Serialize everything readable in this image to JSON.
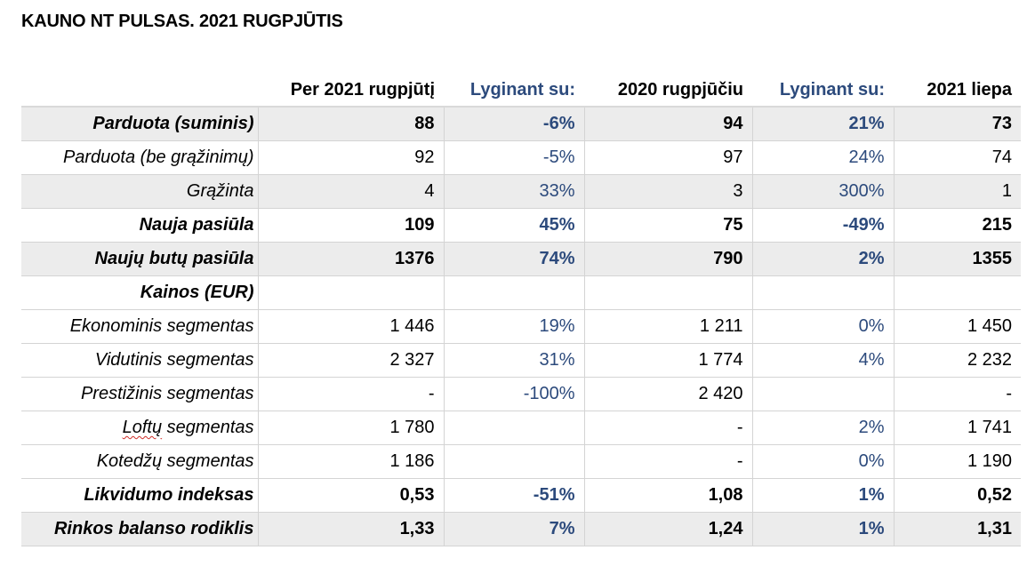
{
  "title": "KAUNO NT PULSAS. 2021 RUGPJŪTIS",
  "header": {
    "label": "",
    "col1": "Per 2021 rugpjūtį",
    "col2": "Lyginant su:",
    "col3": "2020 rugpjūčiu",
    "col4": "Lyginant su:",
    "col5": "2021 liepa"
  },
  "rows": [
    {
      "label": "Parduota (suminis)",
      "c1": "88",
      "c2": "-6%",
      "c3": "94",
      "c4": "21%",
      "c5": "73"
    },
    {
      "label": "Parduota (be grąžinimų)",
      "c1": "92",
      "c2": "-5%",
      "c3": "97",
      "c4": "24%",
      "c5": "74"
    },
    {
      "label": "Grąžinta",
      "c1": "4",
      "c2": "33%",
      "c3": "3",
      "c4": "300%",
      "c5": "1"
    },
    {
      "label": "Nauja pasiūla",
      "c1": "109",
      "c2": "45%",
      "c3": "75",
      "c4": "-49%",
      "c5": "215"
    },
    {
      "label": "Naujų butų pasiūla",
      "c1": "1376",
      "c2": "74%",
      "c3": "790",
      "c4": "2%",
      "c5": "1355"
    },
    {
      "label": "Kainos (EUR)",
      "c1": "",
      "c2": "",
      "c3": "",
      "c4": "",
      "c5": ""
    },
    {
      "label": "Ekonominis segmentas",
      "c1": "1 446",
      "c2": "19%",
      "c3": "1 211",
      "c4": "0%",
      "c5": "1 450"
    },
    {
      "label": "Vidutinis segmentas",
      "c1": "2 327",
      "c2": "31%",
      "c3": "1 774",
      "c4": "4%",
      "c5": "2 232"
    },
    {
      "label": "Prestižinis segmentas",
      "c1": "-",
      "c2": "-100%",
      "c3": "2 420",
      "c4": "",
      "c5": "-"
    },
    {
      "label_a": "Loftų",
      "label_b": " segmentas",
      "c1": "1 780",
      "c2": "",
      "c3": "-",
      "c4": "2%",
      "c5": "1 741"
    },
    {
      "label": "Kotedžų segmentas",
      "c1": "1 186",
      "c2": "",
      "c3": "-",
      "c4": "0%",
      "c5": "1 190"
    },
    {
      "label": "Likvidumo indeksas",
      "c1": "0,53",
      "c2": "-51%",
      "c3": "1,08",
      "c4": "1%",
      "c5": "0,52"
    },
    {
      "label": "Rinkos balanso rodiklis",
      "c1": "1,33",
      "c2": "7%",
      "c3": "1,24",
      "c4": "1%",
      "c5": "1,31"
    }
  ],
  "colors": {
    "comparison_text": "#2c4a7c",
    "shaded_row": "#ececec",
    "grid_line": "#d4d4d4"
  }
}
